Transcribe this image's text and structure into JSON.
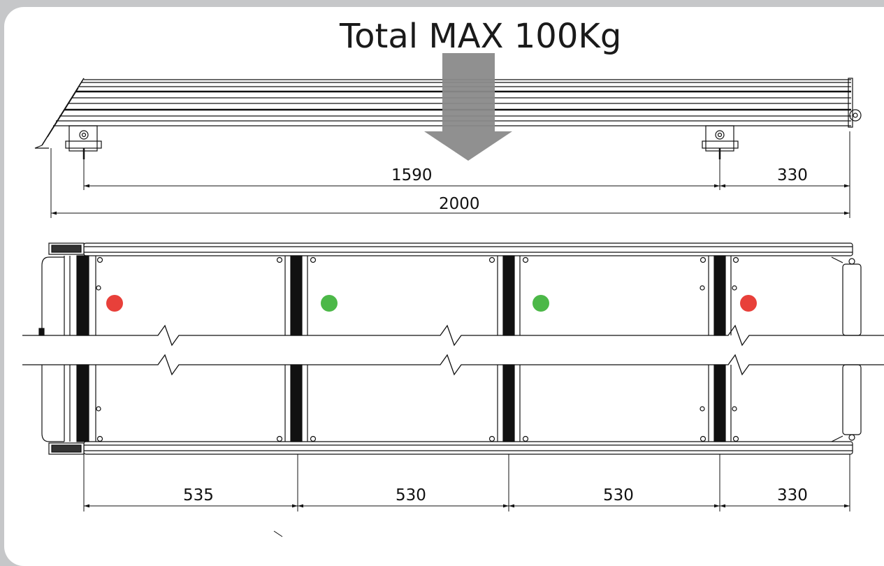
{
  "load_label": "Total MAX 100Kg",
  "side_view": {
    "support_span": "1590",
    "rear_overhang": "330",
    "total_length": "2000"
  },
  "top_view": {
    "segments": [
      "535",
      "530",
      "530",
      "330"
    ],
    "indicators": [
      {
        "color": "#e8403a"
      },
      {
        "color": "#4cb848"
      },
      {
        "color": "#4cb848"
      },
      {
        "color": "#e8403a"
      }
    ]
  },
  "colors": {
    "background": "#c6c7c9",
    "sheet": "#ffffff",
    "load_arrow": "#8a8a8a",
    "indicator_red": "#e8403a",
    "indicator_green": "#4cb848"
  }
}
